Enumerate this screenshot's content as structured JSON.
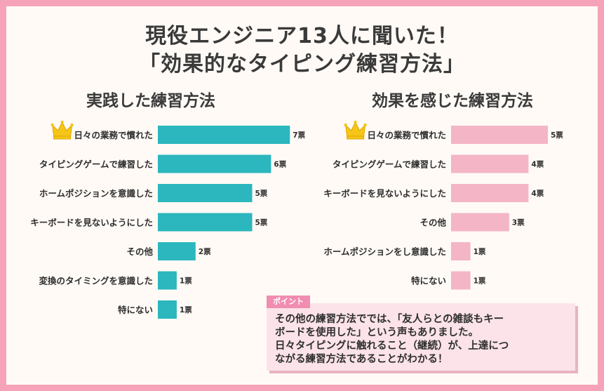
{
  "title": {
    "line1": "現役エンジニア13人に聞いた！",
    "line2": "「効果的なタイピング練習方法」"
  },
  "chart_data": [
    {
      "type": "bar",
      "orientation": "horizontal",
      "title": "実践した練習方法",
      "categories": [
        "日々の業務で慣れた",
        "タイピングゲームで練習した",
        "ホームポジションを意識した",
        "キーボードを見ないようにした",
        "その他",
        "変換のタイミングを意識した",
        "特にない"
      ],
      "values": [
        7,
        6,
        5,
        5,
        2,
        1,
        1
      ],
      "value_labels": [
        "7票",
        "6票",
        "5票",
        "5票",
        "2票",
        "1票",
        "1票"
      ],
      "bar_color": "#2bb7bd",
      "crown_on_first": true
    },
    {
      "type": "bar",
      "orientation": "horizontal",
      "title": "効果を感じた練習方法",
      "categories": [
        "日々の業務で慣れた",
        "タイピングゲームで練習した",
        "キーボードを見ないようにした",
        "その他",
        "ホームポジションをし意識した",
        "特にない"
      ],
      "values": [
        5,
        4,
        4,
        3,
        1,
        1
      ],
      "value_labels": [
        "5票",
        "4票",
        "4票",
        "3票",
        "1票",
        "1票"
      ],
      "bar_color": "#f4b5c7",
      "crown_on_first": true
    }
  ],
  "point": {
    "tag": "ポイント",
    "lines": [
      "その他の練習方法ででは、「友人らとの雑談もキー",
      "ボードを使用した」という声もありました。",
      "日々タイピングに触れること（継続）が、上達につ",
      "ながる練習方法であることがわかる！"
    ]
  },
  "colors": {
    "border": "#f6a3ba",
    "background": "#fffaf6",
    "crown": "#f5c518",
    "point_tag": "#f08db0",
    "point_box": "#fbe3e9"
  }
}
